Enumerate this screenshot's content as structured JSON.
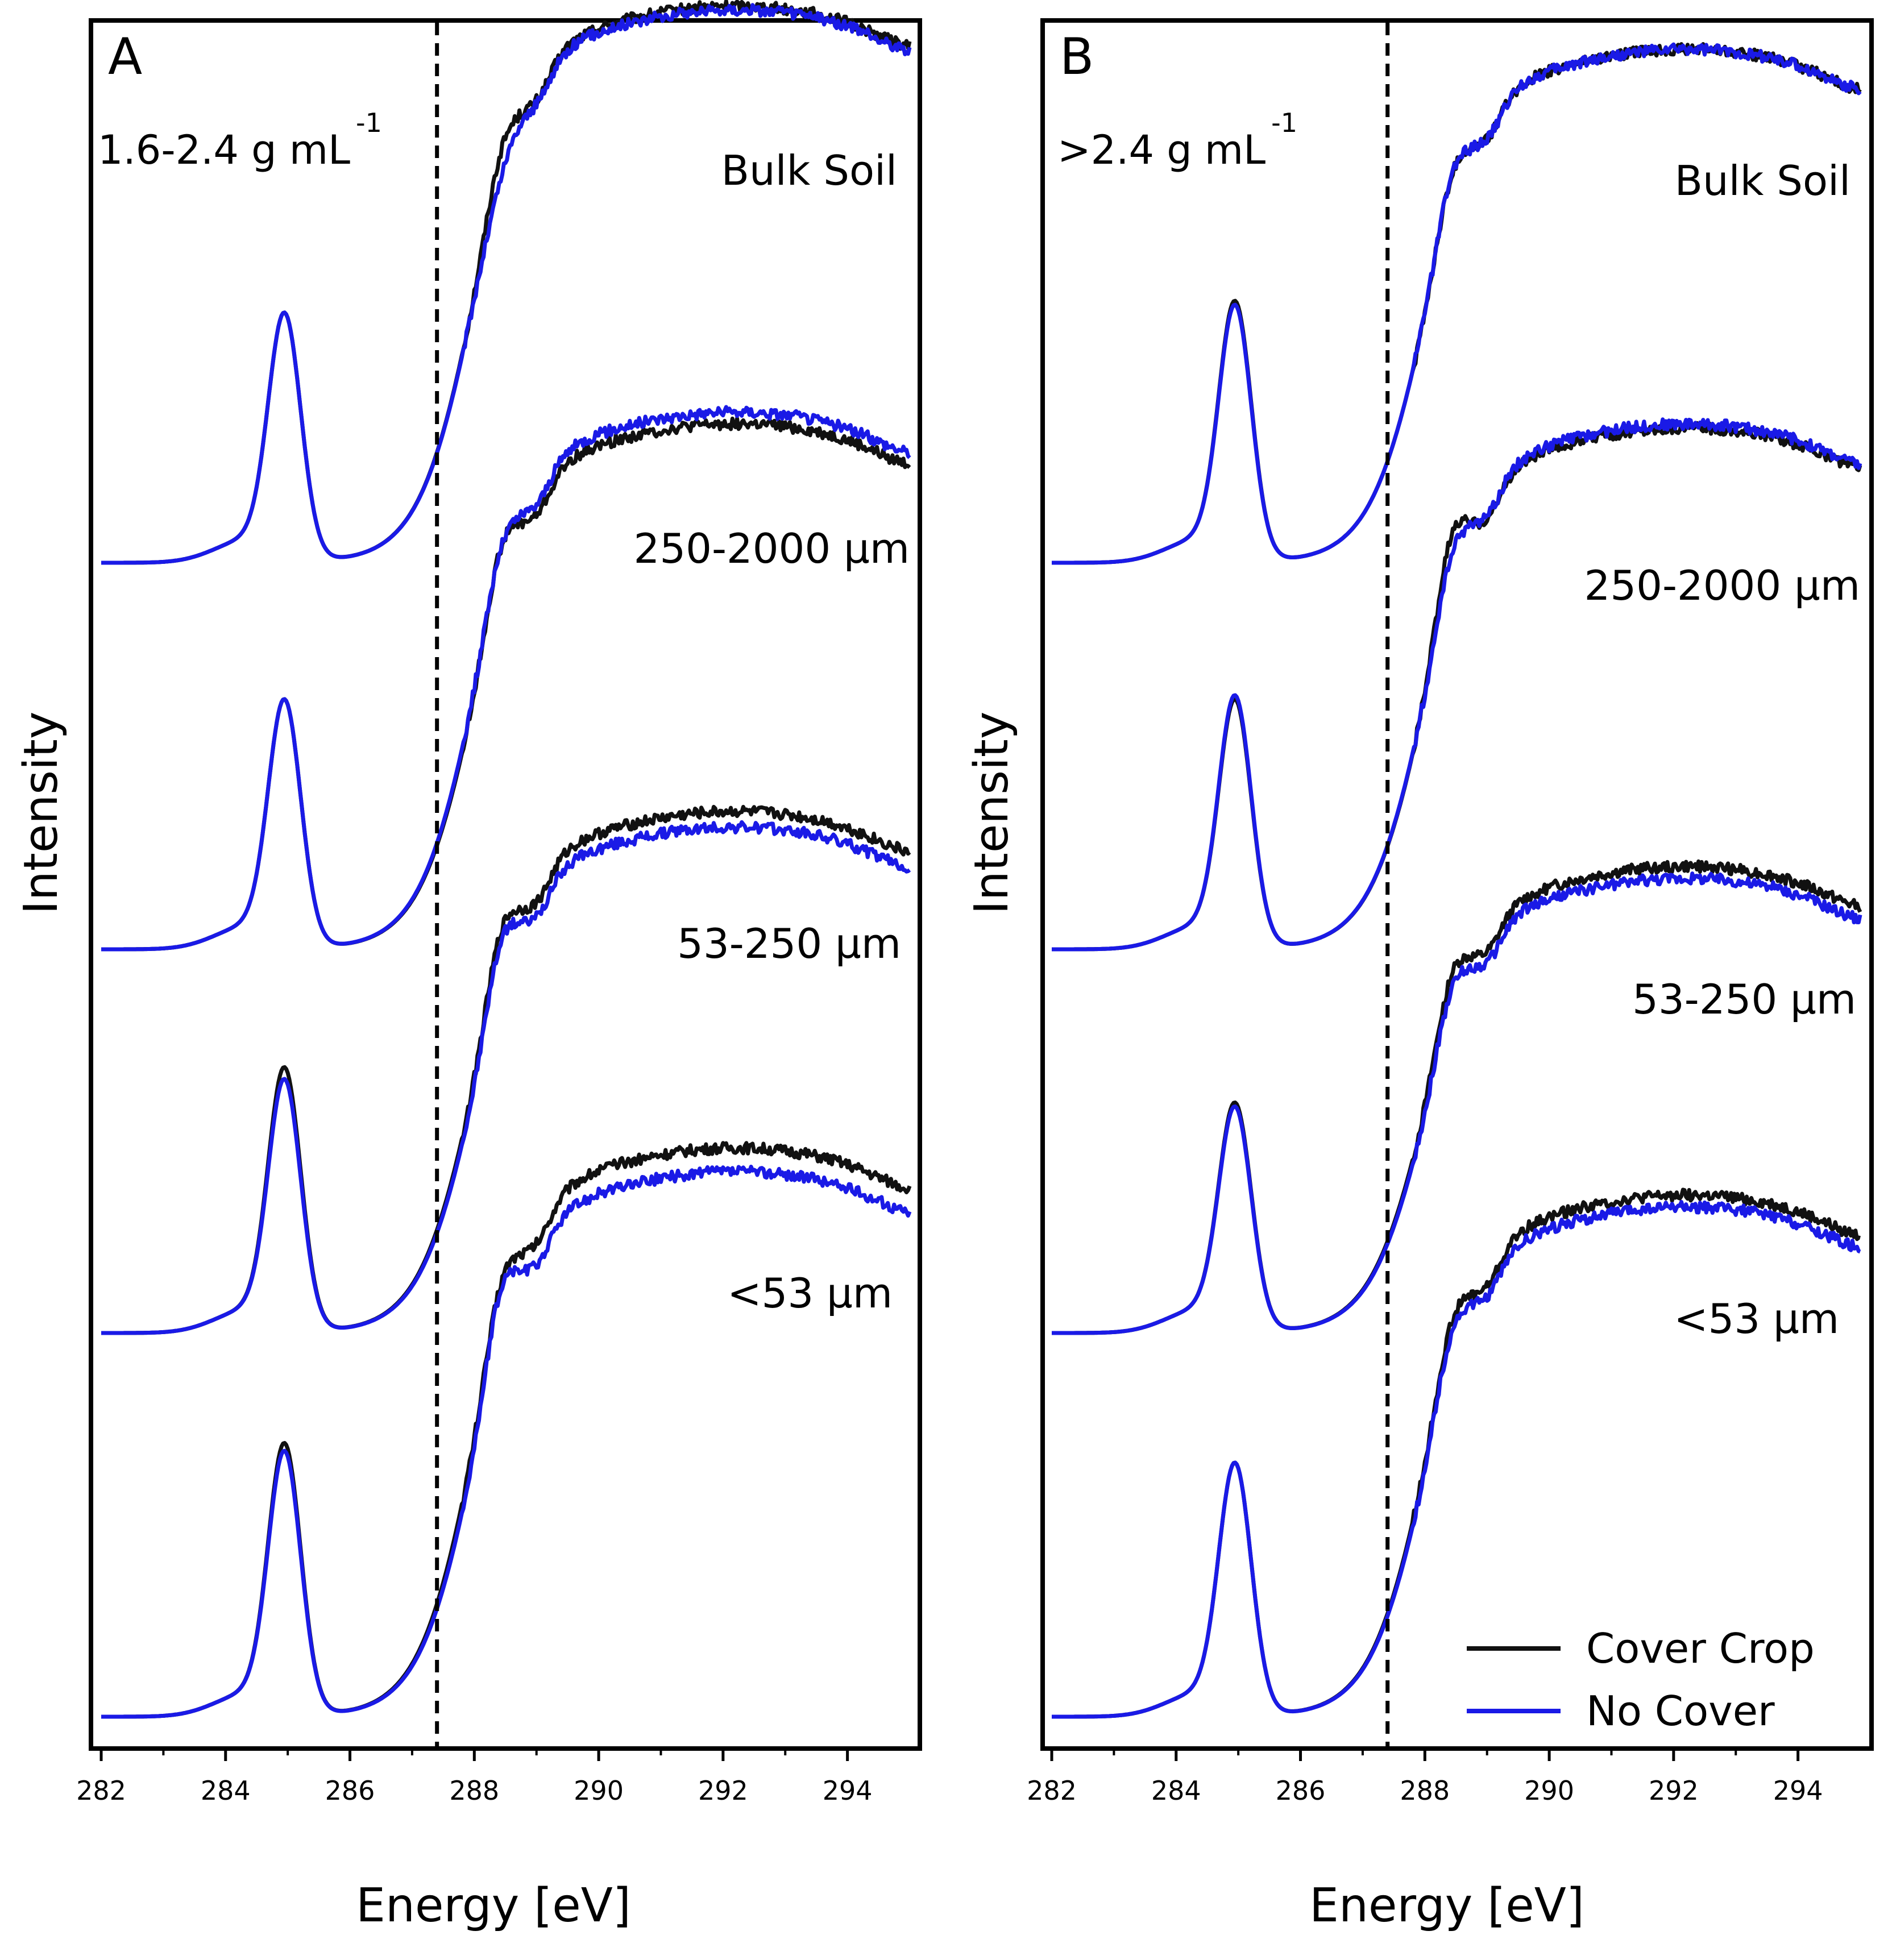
{
  "colors": {
    "cover_crop": "#111111",
    "no_cover": "#1a1ae6",
    "axis": "#000000"
  },
  "chart_data": [
    {
      "type": "line",
      "panel": "A",
      "annotation": "1.6-2.4 g mL",
      "annotation_sup": "-1",
      "xlabel": "Energy [eV]",
      "ylabel": "Intensity",
      "xlim": [
        282,
        295
      ],
      "xticks": [
        "282",
        "284",
        "286",
        "288",
        "290",
        "292",
        "294"
      ],
      "yticks_shown": false,
      "reference_line_eV": 287.4,
      "series": [
        {
          "name": "Cover Crop",
          "color": "#111111"
        },
        {
          "name": "No Cover",
          "color": "#1a1ae6"
        }
      ],
      "traces": [
        {
          "label": "Bulk Soil",
          "offset": 3.0,
          "cover_crop": {
            "peak285": 0.62,
            "peak288": 1.12,
            "plateau": 1.34
          },
          "no_cover": {
            "peak285": 0.62,
            "peak288": 1.05,
            "plateau": 1.33
          }
        },
        {
          "label": "250-2000 µm",
          "offset": 2.0,
          "cover_crop": {
            "peak285": 0.62,
            "peak288": 1.09,
            "plateau": 1.26
          },
          "no_cover": {
            "peak285": 0.62,
            "peak288": 1.09,
            "plateau": 1.29
          }
        },
        {
          "label": "53-250 µm",
          "offset": 1.0,
          "cover_crop": {
            "peak285": 0.66,
            "peak288": 1.09,
            "plateau": 1.25
          },
          "no_cover": {
            "peak285": 0.63,
            "peak288": 1.06,
            "plateau": 1.21
          }
        },
        {
          "label": "<53 µm",
          "offset": 0.0,
          "cover_crop": {
            "peak285": 0.68,
            "peak288": 1.18,
            "plateau": 1.37
          },
          "no_cover": {
            "peak285": 0.66,
            "peak288": 1.16,
            "plateau": 1.31
          }
        }
      ]
    },
    {
      "type": "line",
      "panel": "B",
      "annotation": ">2.4 g mL",
      "annotation_sup": "-1",
      "xlabel": "Energy [eV]",
      "ylabel": "Intensity",
      "xlim": [
        282,
        295
      ],
      "xticks": [
        "282",
        "284",
        "286",
        "288",
        "290",
        "292",
        "294"
      ],
      "yticks_shown": false,
      "reference_line_eV": 287.4,
      "series": [
        {
          "name": "Cover Crop",
          "color": "#111111"
        },
        {
          "name": "No Cover",
          "color": "#1a1ae6"
        }
      ],
      "traces": [
        {
          "label": "Bulk Soil",
          "offset": 3.0,
          "cover_crop": {
            "peak285": 0.65,
            "peak288": 1.05,
            "plateau": 1.23
          },
          "no_cover": {
            "peak285": 0.64,
            "peak288": 1.05,
            "plateau": 1.23
          }
        },
        {
          "label": "250-2000 µm",
          "offset": 2.0,
          "cover_crop": {
            "peak285": 0.62,
            "peak288": 1.12,
            "plateau": 1.25
          },
          "no_cover": {
            "peak285": 0.63,
            "peak288": 1.07,
            "plateau": 1.26
          }
        },
        {
          "label": "53-250 µm",
          "offset": 1.0,
          "cover_crop": {
            "peak285": 0.57,
            "peak288": 0.97,
            "plateau": 1.11
          },
          "no_cover": {
            "peak285": 0.56,
            "peak288": 0.93,
            "plateau": 1.08
          }
        },
        {
          "label": "<53 µm",
          "offset": 0.0,
          "cover_crop": {
            "peak285": 0.63,
            "peak288": 1.07,
            "plateau": 1.25
          },
          "no_cover": {
            "peak285": 0.63,
            "peak288": 1.04,
            "plateau": 1.22
          }
        }
      ],
      "legend": {
        "placement": "bottom-right",
        "entries": [
          "Cover Crop",
          "No Cover"
        ]
      }
    }
  ]
}
